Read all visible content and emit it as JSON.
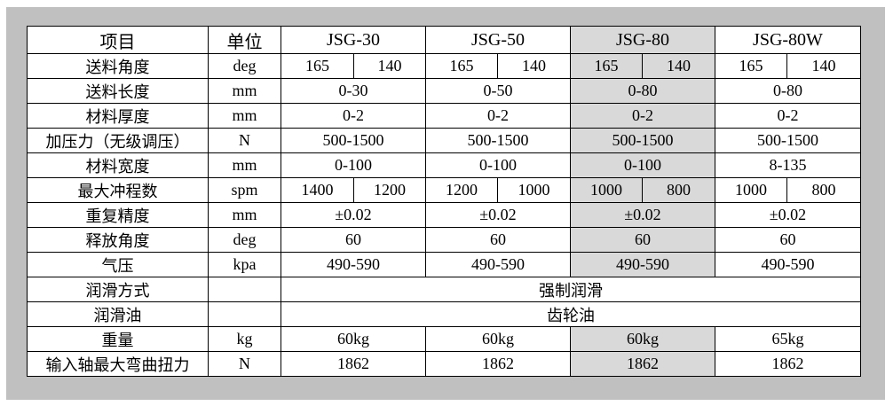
{
  "table": {
    "header": [
      "项目",
      "单位",
      "JSG-30",
      "JSG-50",
      "JSG-80",
      "JSG-80W"
    ],
    "highlight_color": "#d9d9d9",
    "highlighted_model": "JSG-80",
    "rows": [
      {
        "item": "送料角度",
        "unit": "deg",
        "values": [
          [
            "165",
            "140"
          ],
          [
            "165",
            "140"
          ],
          [
            "165",
            "140"
          ],
          [
            "165",
            "140"
          ]
        ]
      },
      {
        "item": "送料长度",
        "unit": "mm",
        "values": [
          "0-30",
          "0-50",
          "0-80",
          "0-80"
        ]
      },
      {
        "item": "材料厚度",
        "unit": "mm",
        "values": [
          "0-2",
          "0-2",
          "0-2",
          "0-2"
        ]
      },
      {
        "item": "加压力（无级调压）",
        "unit": "N",
        "values": [
          "500-1500",
          "500-1500",
          "500-1500",
          "500-1500"
        ]
      },
      {
        "item": "材料宽度",
        "unit": "mm",
        "values": [
          "0-100",
          "0-100",
          "0-100",
          "8-135"
        ]
      },
      {
        "item": "最大冲程数",
        "unit": "spm",
        "values": [
          [
            "1400",
            "1200"
          ],
          [
            "1200",
            "1000"
          ],
          [
            "1000",
            "800"
          ],
          [
            "1000",
            "800"
          ]
        ]
      },
      {
        "item": "重复精度",
        "unit": "mm",
        "values": [
          "±0.02",
          "±0.02",
          "±0.02",
          "±0.02"
        ]
      },
      {
        "item": "释放角度",
        "unit": "deg",
        "values": [
          "60",
          "60",
          "60",
          "60"
        ]
      },
      {
        "item": "气压",
        "unit": "kpa",
        "values": [
          "490-590",
          "490-590",
          "490-590",
          "490-590"
        ]
      },
      {
        "item": "润滑方式",
        "unit": "",
        "merged": "强制润滑"
      },
      {
        "item": "润滑油",
        "unit": "",
        "merged": "齿轮油"
      },
      {
        "item": "重量",
        "unit": "kg",
        "values": [
          "60kg",
          "60kg",
          "60kg",
          "65kg"
        ]
      },
      {
        "item": "输入轴最大弯曲扭力",
        "unit": "N",
        "values": [
          "1862",
          "1862",
          "1862",
          "1862"
        ]
      }
    ]
  }
}
